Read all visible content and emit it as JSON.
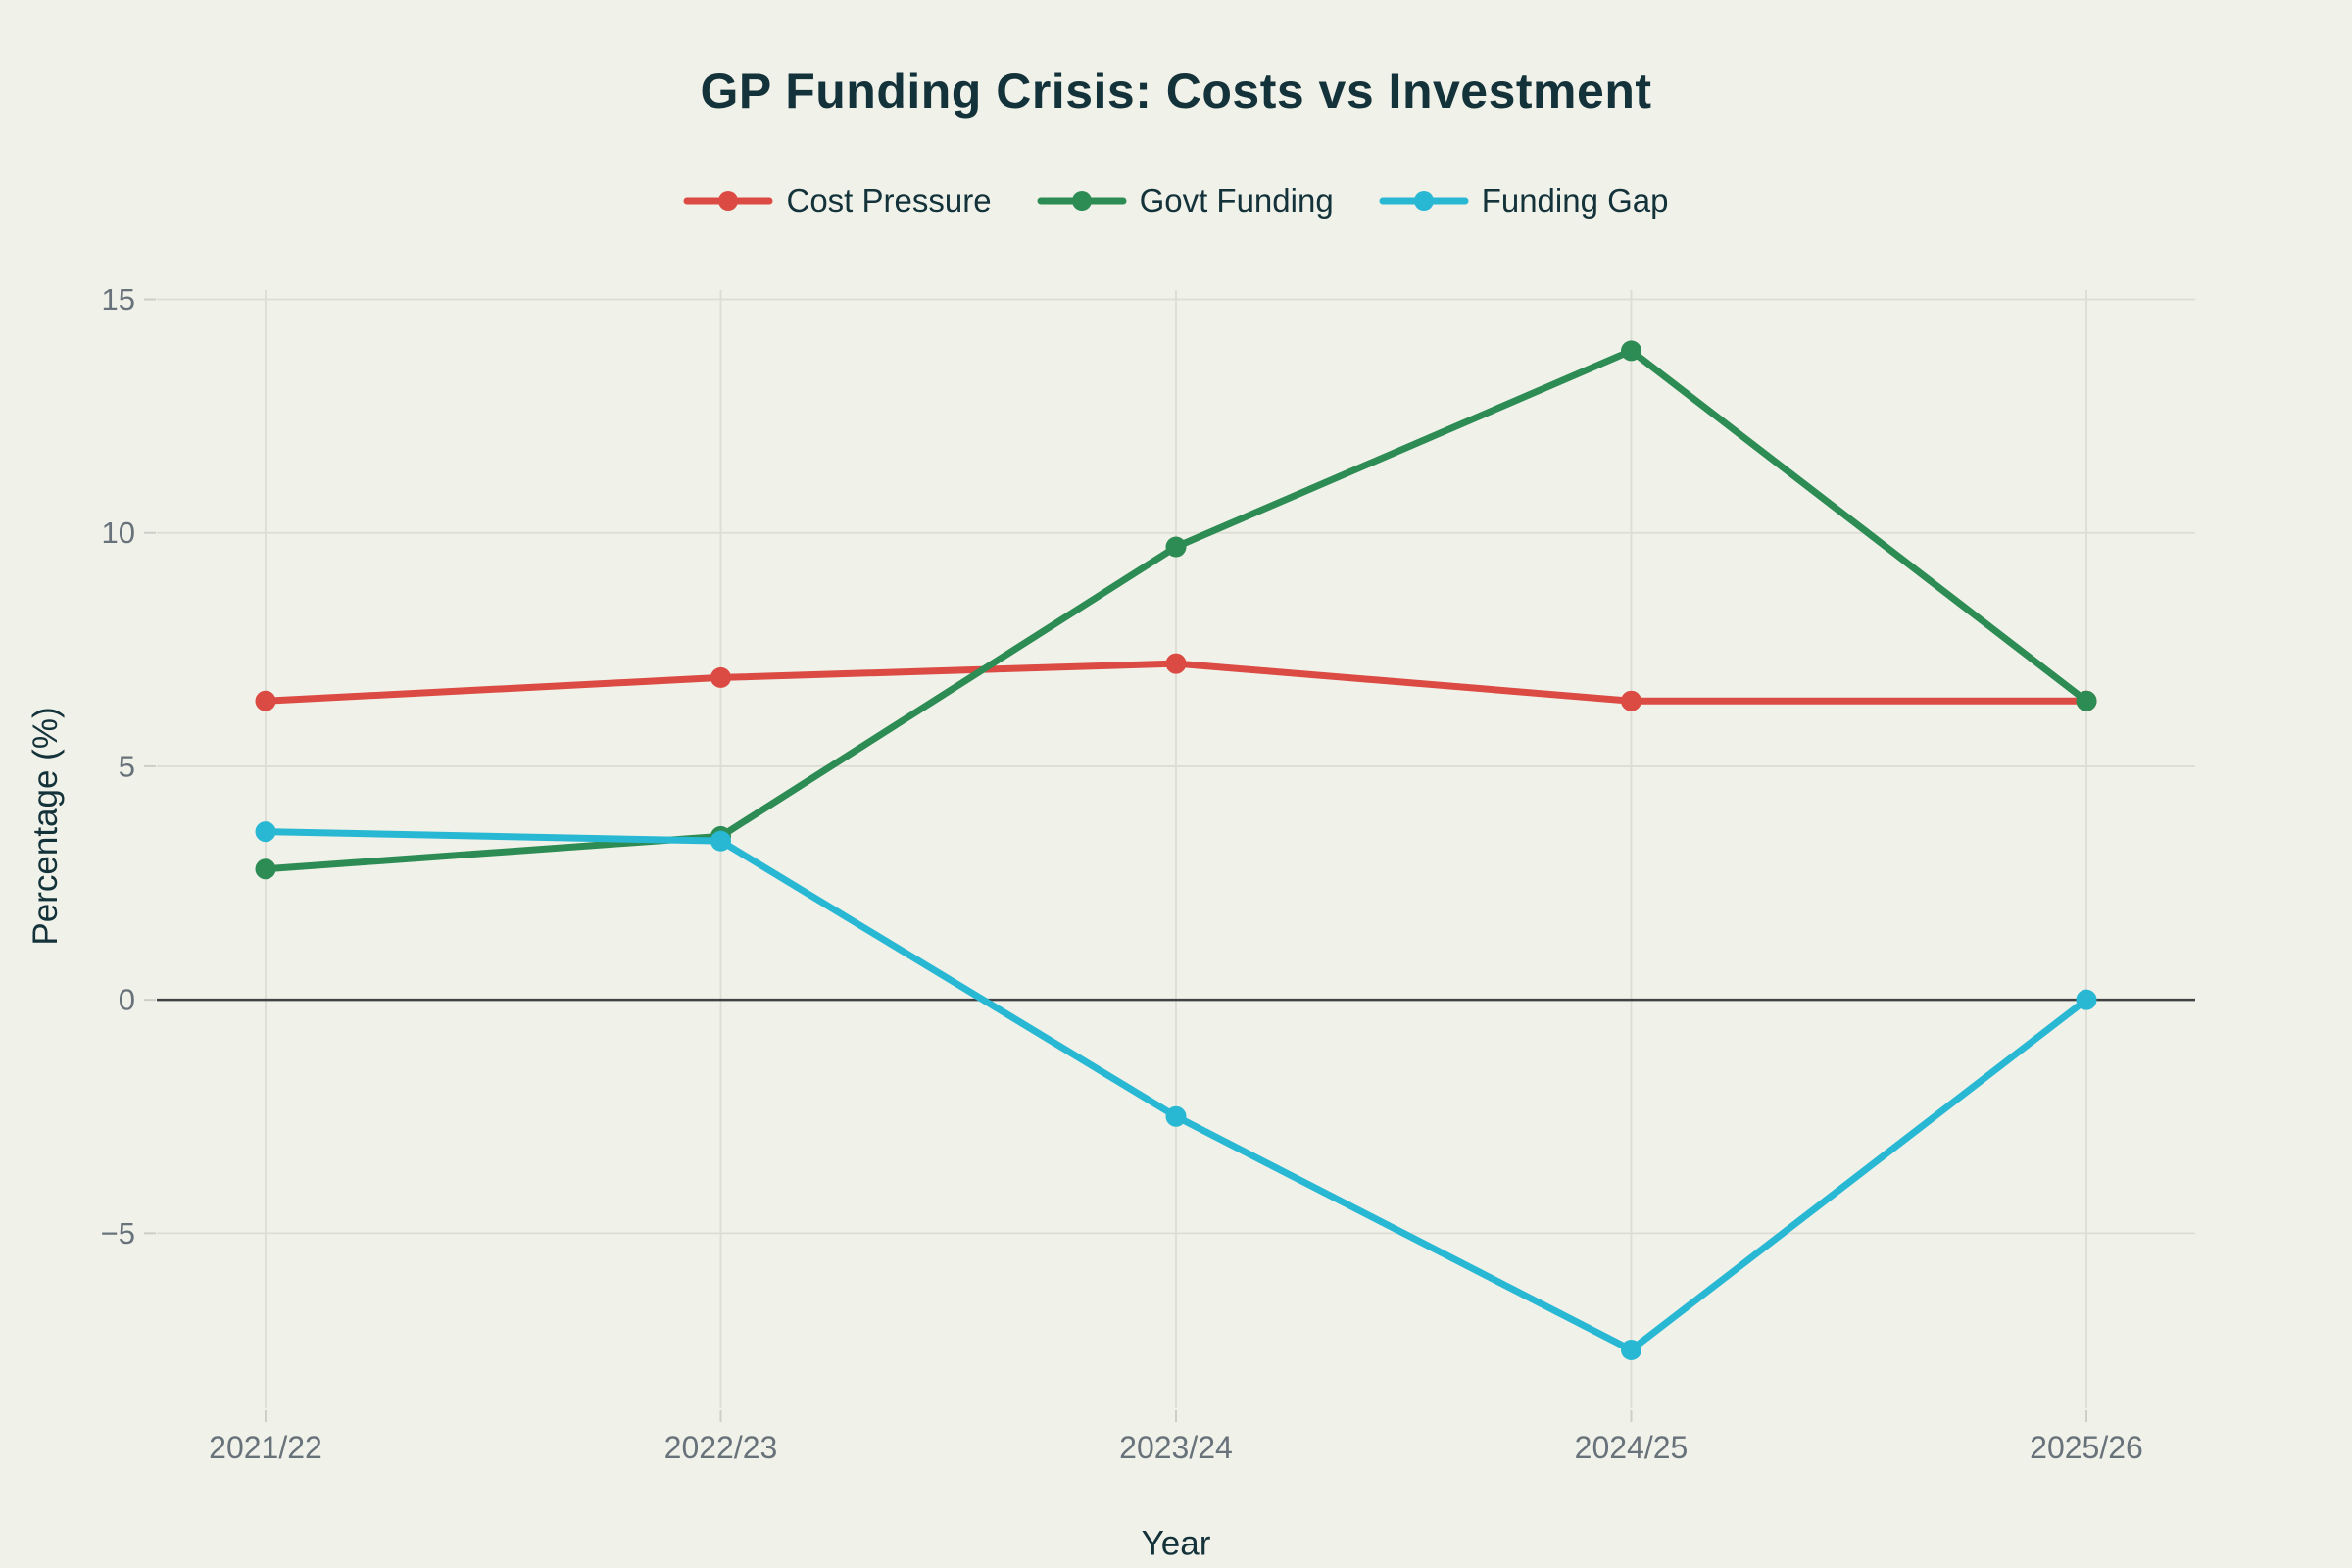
{
  "chart_data": {
    "type": "line",
    "title": "GP Funding Crisis: Costs vs Investment",
    "categories": [
      "2021/22",
      "2022/23",
      "2023/24",
      "2024/25",
      "2025/26"
    ],
    "series": [
      {
        "name": "Cost Pressure",
        "color": "#DB4A43",
        "values": [
          6.4,
          6.9,
          7.2,
          6.4,
          6.4
        ]
      },
      {
        "name": "Govt Funding",
        "color": "#2D8C54",
        "values": [
          2.8,
          3.5,
          9.7,
          13.9,
          6.4
        ]
      },
      {
        "name": "Funding Gap",
        "color": "#29B8D3",
        "values": [
          3.6,
          3.4,
          -2.5,
          -7.5,
          0.0
        ]
      }
    ],
    "xlabel": "Year",
    "ylabel": "Percentage (%)",
    "yticks": [
      -5,
      0,
      5,
      10,
      15
    ],
    "ylim": [
      -8.75,
      15.2
    ],
    "grid": true,
    "zero_line": true,
    "legend_position": "top-center",
    "marker": "circle"
  },
  "theme": {
    "background": "#F0F1E9",
    "title_color": "#13323A",
    "axis_title_color": "#13323A",
    "tick_label_color": "#68727A",
    "gridline_color": "#DCDDD5",
    "tick_mark_color": "#CDCEC6",
    "zero_line_color": "#3F4245"
  }
}
